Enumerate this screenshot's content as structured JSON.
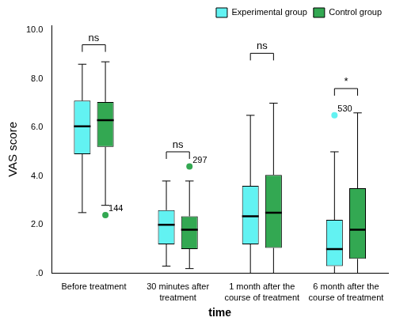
{
  "chart_data": {
    "type": "box",
    "x_label": "time",
    "y_label": "VAS score",
    "categories": [
      "Before treatment",
      "30 minutes after treatment",
      "1 month after the course of treatment",
      "6 month after the course of treatment"
    ],
    "series": [
      {
        "name": "Experimental group",
        "color": "#62f2f2",
        "boxes": [
          {
            "min": 2.5,
            "q1": 4.9,
            "median": 6.05,
            "q3": 7.1,
            "max": 8.6,
            "outliers": []
          },
          {
            "min": 0.3,
            "q1": 1.2,
            "median": 2.0,
            "q3": 2.6,
            "max": 3.8,
            "outliers": []
          },
          {
            "min": 0.0,
            "q1": 1.2,
            "median": 2.35,
            "q3": 3.6,
            "max": 6.5,
            "outliers": []
          },
          {
            "min": 0.0,
            "q1": 0.3,
            "median": 1.0,
            "q3": 2.2,
            "max": 5.0,
            "outliers": [
              {
                "value": 6.5,
                "label": "530"
              }
            ]
          }
        ]
      },
      {
        "name": "Control group",
        "color": "#33a852",
        "boxes": [
          {
            "min": 2.8,
            "q1": 5.2,
            "median": 6.3,
            "q3": 7.05,
            "max": 8.7,
            "outliers": [
              {
                "value": 2.4,
                "label": "144"
              }
            ]
          },
          {
            "min": 0.2,
            "q1": 1.0,
            "median": 1.8,
            "q3": 2.35,
            "max": 3.8,
            "outliers": [
              {
                "value": 4.4,
                "label": "297"
              }
            ]
          },
          {
            "min": 0.0,
            "q1": 1.05,
            "median": 2.5,
            "q3": 4.05,
            "max": 7.0,
            "outliers": []
          },
          {
            "min": 0.0,
            "q1": 0.6,
            "median": 1.8,
            "q3": 3.5,
            "max": 6.6,
            "outliers": []
          }
        ]
      }
    ],
    "significance": [
      {
        "category": "Before treatment",
        "y": 9.4,
        "label": "ns"
      },
      {
        "category": "30 minutes after treatment",
        "y": 5.0,
        "label": "ns"
      },
      {
        "category": "1 month after the course of treatment",
        "y": 9.05,
        "label": "ns"
      },
      {
        "category": "6 month after the course of treatment",
        "y": 7.6,
        "label": "*"
      }
    ],
    "ylim": [
      0,
      10.2
    ],
    "yticks": [
      {
        "value": 0,
        "label": ".0"
      },
      {
        "value": 2,
        "label": "2.0"
      },
      {
        "value": 4,
        "label": "4.0"
      },
      {
        "value": 6,
        "label": "6.0"
      },
      {
        "value": 8,
        "label": "8.0"
      },
      {
        "value": 10,
        "label": "10.0"
      }
    ],
    "grid": false,
    "legend": "upper right"
  }
}
